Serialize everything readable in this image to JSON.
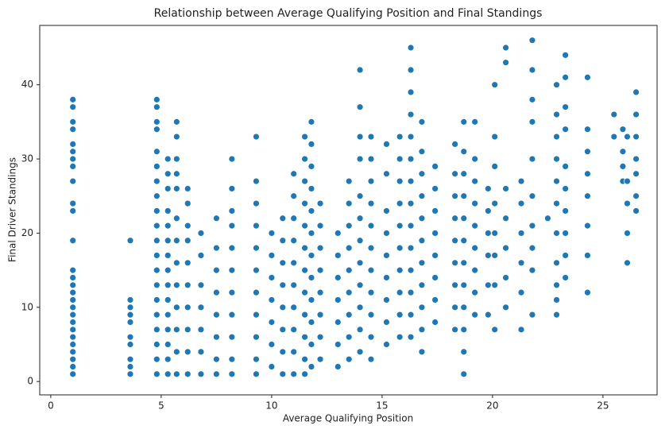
{
  "chart_data": {
    "type": "scatter",
    "title": "Relationship between Average Qualifying Position and Final Standings",
    "x_label": "Average Qualifying Position",
    "y_label": "Final Driver Standings",
    "color": "#1f77b4",
    "xlim": [
      -0.5,
      27.45
    ],
    "ylim": [
      -1.8,
      48
    ],
    "xticks": [
      0,
      5,
      10,
      15,
      20,
      25
    ],
    "yticks": [
      0,
      10,
      20,
      30,
      40
    ],
    "grid": false,
    "x": [
      1,
      1,
      1,
      1,
      1,
      1,
      1,
      1,
      1,
      1,
      1,
      1,
      1,
      1,
      1,
      1,
      1,
      1,
      1,
      1,
      1,
      1,
      1,
      1,
      1,
      1,
      1,
      3.6,
      3.6,
      3.6,
      3.6,
      3.6,
      3.6,
      3.6,
      3.6,
      3.6,
      3.6,
      4.8,
      4.8,
      4.8,
      4.8,
      4.8,
      4.8,
      4.8,
      4.8,
      4.8,
      4.8,
      4.8,
      4.8,
      4.8,
      4.8,
      4.8,
      4.8,
      4.8,
      4.8,
      4.8,
      4.8,
      5.3,
      5.3,
      5.3,
      5.3,
      5.3,
      5.3,
      5.3,
      5.3,
      5.3,
      5.3,
      5.3,
      5.3,
      5.3,
      5.3,
      5.3,
      5.7,
      5.7,
      5.7,
      5.7,
      5.7,
      5.7,
      5.7,
      5.7,
      5.7,
      5.7,
      5.7,
      5.7,
      5.7,
      6.2,
      6.2,
      6.2,
      6.2,
      6.2,
      6.2,
      6.2,
      6.2,
      6.2,
      6.2,
      6.8,
      6.8,
      6.8,
      6.8,
      6.8,
      6.8,
      6.8,
      7.5,
      7.5,
      7.5,
      7.5,
      7.5,
      7.5,
      7.5,
      7.5,
      8.2,
      8.2,
      8.2,
      8.2,
      8.2,
      8.2,
      8.2,
      8.2,
      8.2,
      8.2,
      8.2,
      9.3,
      9.3,
      9.3,
      9.3,
      9.3,
      9.3,
      9.3,
      9.3,
      9.3,
      9.3,
      9.3,
      10,
      10,
      10,
      10,
      10,
      10,
      10,
      10.5,
      10.5,
      10.5,
      10.5,
      10.5,
      10.5,
      10.5,
      10.5,
      11,
      11,
      11,
      11,
      11,
      11,
      11,
      11,
      11,
      11,
      11.5,
      11.5,
      11.5,
      11.5,
      11.5,
      11.5,
      11.5,
      11.5,
      11.5,
      11.5,
      11.5,
      11.5,
      11.8,
      11.8,
      11.8,
      11.8,
      11.8,
      11.8,
      11.8,
      11.8,
      11.8,
      11.8,
      11.8,
      11.8,
      12.2,
      12.2,
      12.2,
      12.2,
      12.2,
      12.2,
      12.2,
      12.2,
      13,
      13,
      13,
      13,
      13,
      13,
      13,
      13.5,
      13.5,
      13.5,
      13.5,
      13.5,
      13.5,
      13.5,
      13.5,
      13.5,
      14,
      14,
      14,
      14,
      14,
      14,
      14,
      14,
      14,
      14,
      14,
      14,
      14.5,
      14.5,
      14.5,
      14.5,
      14.5,
      14.5,
      14.5,
      14.5,
      14.5,
      14.5,
      14.5,
      15.2,
      15.2,
      15.2,
      15.2,
      15.2,
      15.2,
      15.2,
      15.2,
      15.2,
      15.8,
      15.8,
      15.8,
      15.8,
      15.8,
      15.8,
      15.8,
      15.8,
      15.8,
      15.8,
      16.3,
      16.3,
      16.3,
      16.3,
      16.3,
      16.3,
      16.3,
      16.3,
      16.3,
      16.3,
      16.3,
      16.3,
      16.3,
      16.3,
      16.8,
      16.8,
      16.8,
      16.8,
      16.8,
      16.8,
      16.8,
      16.8,
      16.8,
      16.8,
      16.8,
      17.4,
      17.4,
      17.4,
      17.4,
      17.4,
      17.4,
      17.4,
      17.4,
      18.3,
      18.3,
      18.3,
      18.3,
      18.3,
      18.3,
      18.3,
      18.3,
      18.3,
      18.7,
      18.7,
      18.7,
      18.7,
      18.7,
      18.7,
      18.7,
      18.7,
      18.7,
      18.7,
      18.7,
      18.7,
      19.2,
      19.2,
      19.2,
      19.2,
      19.2,
      19.2,
      19.2,
      19.2,
      19.2,
      19.8,
      19.8,
      19.8,
      19.8,
      19.8,
      19.8,
      20.1,
      20.1,
      20.1,
      20.1,
      20.1,
      20.1,
      20.1,
      20.1,
      20.6,
      20.6,
      20.6,
      20.6,
      20.6,
      20.6,
      20.6,
      21.3,
      21.3,
      21.3,
      21.3,
      21.3,
      21.3,
      21.8,
      21.8,
      21.8,
      21.8,
      21.8,
      21.8,
      21.8,
      21.8,
      21.8,
      21.8,
      22.5,
      22.9,
      22.9,
      22.9,
      22.9,
      22.9,
      22.9,
      22.9,
      22.9,
      22.9,
      22.9,
      22.9,
      23.3,
      23.3,
      23.3,
      23.3,
      23.3,
      23.3,
      23.3,
      23.3,
      23.3,
      23.3,
      24.3,
      24.3,
      24.3,
      24.3,
      24.3,
      24.3,
      24.3,
      24.3,
      25.5,
      25.5,
      25.9,
      25.9,
      25.9,
      25.9,
      26.1,
      26.1,
      26.1,
      26.1,
      26.1,
      26.5,
      26.5,
      26.5,
      26.5,
      26.5,
      26.5,
      26.5
    ],
    "values": [
      1,
      2,
      3,
      4,
      5,
      6,
      7,
      8,
      9,
      10,
      11,
      12,
      13,
      14,
      15,
      19,
      23,
      24,
      27,
      29,
      30,
      31,
      32,
      34,
      35,
      37,
      38,
      1,
      2,
      3,
      5,
      6,
      8,
      9,
      10,
      11,
      19,
      1,
      3,
      5,
      7,
      9,
      11,
      13,
      15,
      17,
      19,
      21,
      23,
      25,
      27,
      29,
      31,
      34,
      35,
      37,
      38,
      1,
      3,
      5,
      7,
      9,
      11,
      13,
      15,
      17,
      19,
      21,
      23,
      26,
      28,
      30,
      1,
      4,
      7,
      10,
      13,
      16,
      19,
      22,
      26,
      28,
      30,
      33,
      35,
      1,
      4,
      7,
      10,
      13,
      16,
      19,
      21,
      24,
      26,
      1,
      4,
      7,
      10,
      13,
      17,
      20,
      1,
      3,
      6,
      9,
      12,
      15,
      18,
      22,
      1,
      3,
      6,
      9,
      12,
      15,
      18,
      21,
      23,
      26,
      30,
      1,
      3,
      6,
      9,
      12,
      15,
      18,
      21,
      24,
      27,
      33,
      2,
      5,
      8,
      11,
      14,
      17,
      20,
      1,
      4,
      7,
      10,
      13,
      16,
      19,
      22,
      1,
      4,
      7,
      10,
      13,
      16,
      19,
      22,
      25,
      28,
      1,
      3,
      6,
      9,
      12,
      15,
      18,
      21,
      24,
      27,
      30,
      33,
      2,
      5,
      8,
      11,
      14,
      17,
      20,
      23,
      26,
      29,
      32,
      35,
      3,
      6,
      9,
      12,
      15,
      18,
      21,
      24,
      2,
      5,
      8,
      11,
      14,
      17,
      20,
      3,
      6,
      9,
      12,
      15,
      18,
      21,
      24,
      27,
      4,
      7,
      10,
      13,
      16,
      19,
      22,
      25,
      30,
      33,
      37,
      42,
      3,
      6,
      9,
      12,
      15,
      18,
      21,
      24,
      27,
      30,
      33,
      5,
      8,
      11,
      14,
      17,
      20,
      23,
      28,
      32,
      6,
      9,
      12,
      15,
      18,
      21,
      24,
      27,
      30,
      33,
      6,
      9,
      12,
      15,
      18,
      21,
      24,
      27,
      30,
      33,
      36,
      39,
      42,
      45,
      4,
      7,
      10,
      13,
      16,
      19,
      22,
      25,
      28,
      31,
      35,
      8,
      11,
      14,
      17,
      20,
      23,
      26,
      29,
      7,
      10,
      13,
      16,
      19,
      22,
      25,
      28,
      32,
      1,
      4,
      7,
      10,
      13,
      16,
      19,
      22,
      25,
      28,
      31,
      35,
      9,
      12,
      15,
      18,
      21,
      24,
      27,
      30,
      35,
      9,
      13,
      17,
      20,
      23,
      26,
      7,
      13,
      17,
      20,
      24,
      29,
      33,
      40,
      10,
      14,
      18,
      22,
      26,
      43,
      45,
      7,
      12,
      16,
      20,
      24,
      27,
      9,
      15,
      18,
      21,
      25,
      30,
      35,
      38,
      42,
      46,
      22,
      9,
      11,
      13,
      16,
      20,
      24,
      27,
      30,
      33,
      36,
      40,
      14,
      17,
      20,
      23,
      26,
      29,
      34,
      37,
      41,
      44,
      12,
      17,
      21,
      25,
      28,
      31,
      34,
      41,
      33,
      36,
      27,
      29,
      31,
      34,
      16,
      20,
      24,
      27,
      33,
      23,
      25,
      28,
      30,
      33,
      36,
      39
    ]
  }
}
